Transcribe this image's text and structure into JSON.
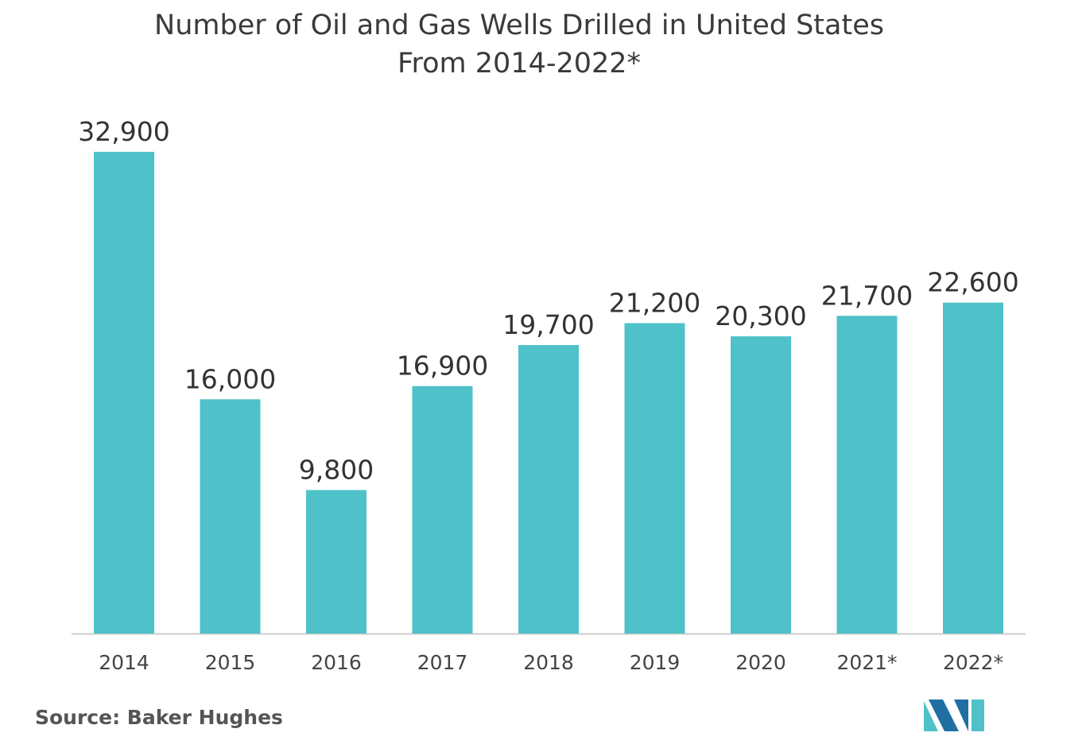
{
  "title_line1": "Number of Oil and Gas Wells Drilled in United States",
  "title_line2": "From 2014-2022*",
  "source": "Source: Baker Hughes",
  "colors": {
    "bar": "#4fc1c8",
    "axis": "#cccccc",
    "label": "#333333",
    "tick": "#444444",
    "logo_dark": "#1f6fa3",
    "logo_light": "#4fc1c8"
  },
  "logo_icon": "mordor-intelligence-logo-icon",
  "chart_data": {
    "type": "bar",
    "title": "Number of Oil and Gas Wells Drilled in United States From 2014-2022*",
    "xlabel": "",
    "ylabel": "",
    "categories": [
      "2014",
      "2015",
      "2016",
      "2017",
      "2018",
      "2019",
      "2020",
      "2021*",
      "2022*"
    ],
    "values": [
      32900,
      16000,
      9800,
      16900,
      19700,
      21200,
      20300,
      21700,
      22600
    ],
    "value_labels": [
      "32,900",
      "16,000",
      "9,800",
      "16,900",
      "19,700",
      "21,200",
      "20,300",
      "21,700",
      "22,600"
    ],
    "ylim": [
      0,
      32900
    ],
    "grid": false,
    "legend": "none"
  }
}
